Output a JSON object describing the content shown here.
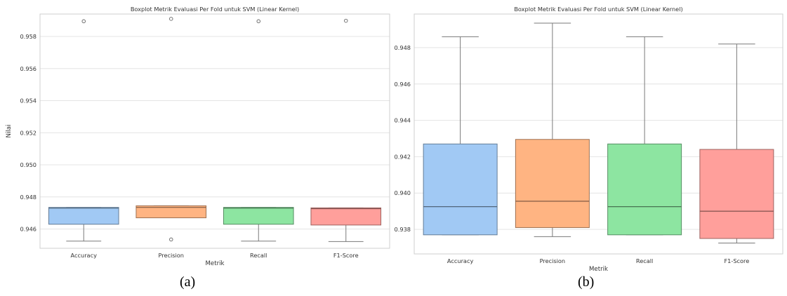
{
  "chart_data": [
    {
      "type": "boxplot",
      "caption": "(a)",
      "title": "Boxplot Metrik Evaluasi Per Fold untuk SVM (Linear Kernel)",
      "xlabel": "Metrik",
      "ylabel": "Nilai",
      "ylim": [
        0.9448,
        0.9594
      ],
      "yticks": [
        0.946,
        0.948,
        0.95,
        0.952,
        0.954,
        0.956,
        0.958
      ],
      "ytick_labels": [
        "0.946",
        "0.948",
        "0.950",
        "0.952",
        "0.954",
        "0.956",
        "0.958"
      ],
      "grid": true,
      "categories": [
        "Accuracy",
        "Precision",
        "Recall",
        "F1-Score"
      ],
      "boxes": [
        {
          "category": "Accuracy",
          "whislo": 0.94525,
          "q1": 0.9463,
          "med": 0.9473,
          "q3": 0.94735,
          "whishi": 0.94735,
          "fliers": [
            0.95895
          ],
          "color": "#a1c9f4"
        },
        {
          "category": "Precision",
          "whislo": 0.9467,
          "q1": 0.9467,
          "med": 0.94735,
          "q3": 0.94745,
          "whishi": 0.94745,
          "fliers": [
            0.9591,
            0.94535
          ],
          "color": "#ffb482"
        },
        {
          "category": "Recall",
          "whislo": 0.94525,
          "q1": 0.9463,
          "med": 0.9473,
          "q3": 0.94735,
          "whishi": 0.94735,
          "fliers": [
            0.95895
          ],
          "color": "#8de5a1"
        },
        {
          "category": "F1-Score",
          "whislo": 0.94522,
          "q1": 0.94625,
          "med": 0.94727,
          "q3": 0.94732,
          "whishi": 0.94732,
          "fliers": [
            0.95898
          ],
          "color": "#ff9f9b"
        }
      ]
    },
    {
      "type": "boxplot",
      "caption": "(b)",
      "title": "Boxplot Metrik Evaluasi Per Fold untuk SVM (Linear Kernel)",
      "xlabel": "Metrik",
      "ylabel": "Nilai",
      "ylim": [
        0.93665,
        0.94985
      ],
      "yticks": [
        0.938,
        0.94,
        0.942,
        0.944,
        0.946,
        0.948
      ],
      "ytick_labels": [
        "0.938",
        "0.940",
        "0.942",
        "0.944",
        "0.946",
        "0.948"
      ],
      "grid": true,
      "categories": [
        "Accuracy",
        "Precision",
        "Recall",
        "F1-Score"
      ],
      "boxes": [
        {
          "category": "Accuracy",
          "whislo": 0.9377,
          "q1": 0.9377,
          "med": 0.93925,
          "q3": 0.9427,
          "whishi": 0.9486,
          "fliers": [],
          "color": "#a1c9f4"
        },
        {
          "category": "Precision",
          "whislo": 0.9376,
          "q1": 0.9381,
          "med": 0.93955,
          "q3": 0.94295,
          "whishi": 0.94935,
          "fliers": [],
          "color": "#ffb482"
        },
        {
          "category": "Recall",
          "whislo": 0.9377,
          "q1": 0.9377,
          "med": 0.93925,
          "q3": 0.9427,
          "whishi": 0.9486,
          "fliers": [],
          "color": "#8de5a1"
        },
        {
          "category": "F1-Score",
          "whislo": 0.93725,
          "q1": 0.9375,
          "med": 0.939,
          "q3": 0.9424,
          "whishi": 0.9482,
          "fliers": [],
          "color": "#ff9f9b"
        }
      ]
    }
  ]
}
